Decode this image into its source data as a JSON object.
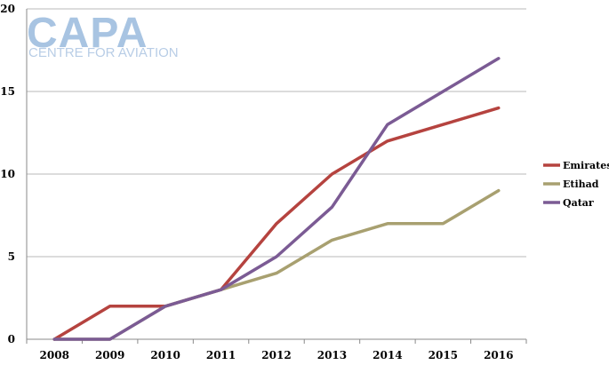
{
  "watermark": {
    "brand": "CAPA",
    "tagline": "CENTRE FOR AVIATION"
  },
  "chart_data": {
    "type": "line",
    "title": "",
    "xlabel": "",
    "ylabel": "",
    "categories": [
      "2008",
      "2009",
      "2010",
      "2011",
      "2012",
      "2013",
      "2014",
      "2015",
      "2016"
    ],
    "ylim": [
      0,
      20
    ],
    "yticks": [
      0,
      5,
      10,
      15,
      20
    ],
    "grid": "horizontal",
    "legend_position": "right",
    "series": [
      {
        "name": "Emirates",
        "color": "#b5433f",
        "values": [
          0,
          2,
          2,
          3,
          7,
          10,
          12,
          13,
          14
        ]
      },
      {
        "name": "Etihad",
        "color": "#a8a070",
        "values": [
          0,
          0,
          2,
          3,
          4,
          6,
          7,
          7,
          9
        ]
      },
      {
        "name": "Qatar",
        "color": "#7b5b94",
        "values": [
          0,
          0,
          2,
          3,
          5,
          8,
          13,
          15,
          17
        ]
      }
    ]
  }
}
